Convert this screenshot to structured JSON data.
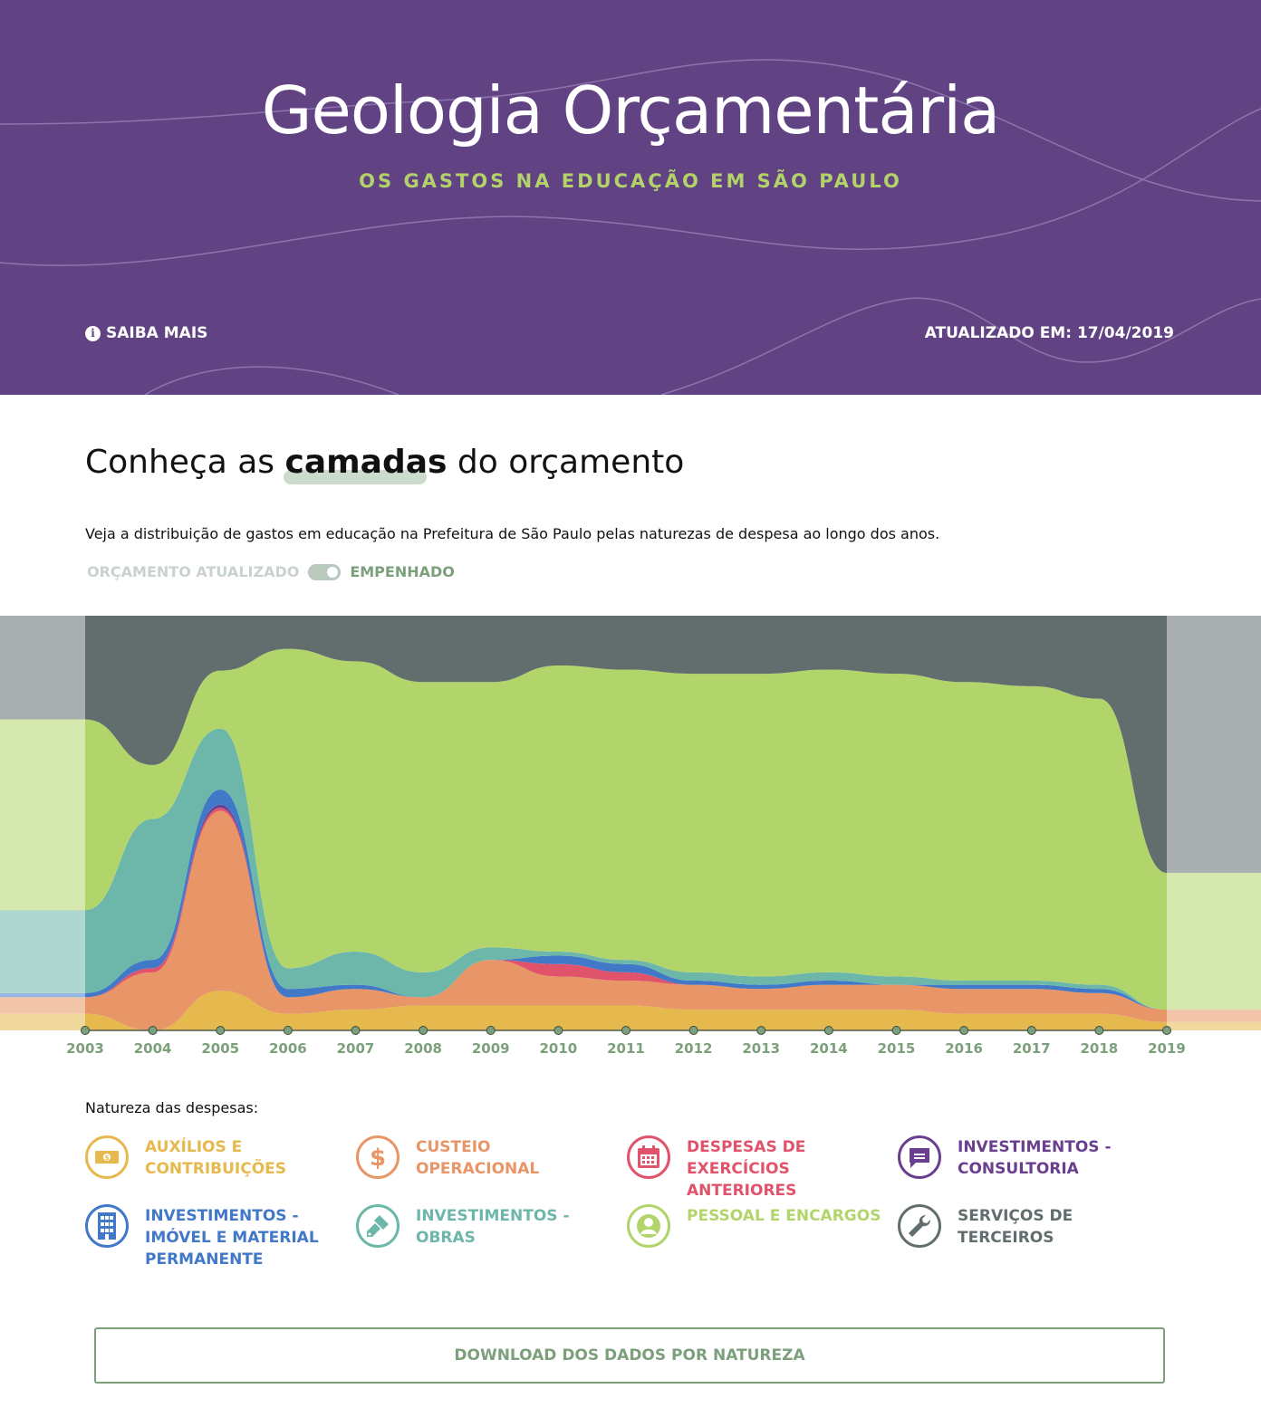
{
  "header": {
    "title": "Geologia Orçamentária",
    "subtitle": "OS GASTOS NA EDUCAÇÃO EM SÃO PAULO",
    "more_label": "SAIBA MAIS",
    "updated_label": "ATUALIZADO EM: 17/04/2019",
    "bg_color": "#614384",
    "subtitle_color": "#b3d36a"
  },
  "intro": {
    "title_before": "Conheça as",
    "title_highlight": "camadas",
    "title_after": "do orçamento",
    "description": "Veja a distribuição de gastos em educação na Prefeitura de São Paulo pelas naturezas de despesa ao longo dos anos.",
    "toggle_off_label": "ORÇAMENTO ATUALIZADO",
    "toggle_on_label": "EMPENHADO",
    "toggle_state": "EMPENHADO"
  },
  "chart_data": {
    "type": "area",
    "stacked": true,
    "normalized": true,
    "x": [
      2003,
      2004,
      2005,
      2006,
      2007,
      2008,
      2009,
      2010,
      2011,
      2012,
      2013,
      2014,
      2015,
      2016,
      2017,
      2018,
      2019
    ],
    "series": [
      {
        "name": "AUXÍLIOS E CONTRIBUIÇÕES",
        "color": "#e6b94e",
        "values": [
          4,
          0,
          13,
          4,
          5,
          6,
          6,
          6,
          6,
          5,
          5,
          5,
          5,
          4,
          4,
          4,
          2
        ]
      },
      {
        "name": "CUSTEIO OPERACIONAL",
        "color": "#e89567",
        "values": [
          4,
          14,
          59,
          4,
          5,
          2,
          11,
          7,
          6,
          6,
          5,
          6,
          6,
          6,
          6,
          5,
          3
        ]
      },
      {
        "name": "DESPESAS DE EXERCÍCIOS ANTERIORES",
        "color": "#e0536a",
        "values": [
          0,
          1,
          1,
          0,
          0,
          0,
          0,
          3,
          2,
          0,
          0,
          0,
          0,
          0,
          0,
          0,
          0
        ]
      },
      {
        "name": "INVESTIMENTOS - CONSULTORIA",
        "color": "#6a3f8f",
        "values": [
          0,
          0,
          1,
          0,
          0,
          0,
          0,
          0,
          0,
          0,
          0,
          0,
          0,
          0,
          0,
          0,
          0
        ]
      },
      {
        "name": "INVESTIMENTOS - IMÓVEL E MATERIAL PERMANENTE",
        "color": "#4178c8",
        "values": [
          1,
          2,
          5,
          2,
          1,
          0,
          0,
          2,
          2,
          1,
          1,
          1,
          0,
          1,
          1,
          1,
          0
        ]
      },
      {
        "name": "INVESTIMENTOS - OBRAS",
        "color": "#6db7aa",
        "values": [
          20,
          34,
          20,
          5,
          8,
          6,
          3,
          1,
          1,
          2,
          2,
          2,
          2,
          1,
          1,
          1,
          0
        ]
      },
      {
        "name": "PESSOAL E ENCARGOS",
        "color": "#b2d56b",
        "values": [
          46,
          13,
          19,
          77,
          70,
          70,
          64,
          69,
          70,
          72,
          73,
          73,
          73,
          72,
          71,
          69,
          33
        ]
      },
      {
        "name": "SERVIÇOS DE TERCEIROS",
        "color": "#626d6e",
        "values": [
          25,
          36,
          18,
          8,
          11,
          16,
          16,
          12,
          13,
          14,
          14,
          13,
          14,
          16,
          17,
          20,
          62
        ]
      }
    ]
  },
  "legend": {
    "heading": "Natureza das despesas:",
    "items": [
      {
        "label": "AUXÍLIOS E CONTRIBUIÇÕES",
        "color": "#e6b94e",
        "icon": "cash-icon"
      },
      {
        "label": "CUSTEIO OPERACIONAL",
        "color": "#e89567",
        "icon": "dollar-icon"
      },
      {
        "label": "DESPESAS DE EXERCÍCIOS ANTERIORES",
        "color": "#e0536a",
        "icon": "calendar-icon"
      },
      {
        "label": "INVESTIMENTOS - CONSULTORIA",
        "color": "#6a3f8f",
        "icon": "chat-icon"
      },
      {
        "label": "INVESTIMENTOS - IMÓVEL E MATERIAL PERMANENTE",
        "color": "#4178c8",
        "icon": "building-icon"
      },
      {
        "label": "INVESTIMENTOS - OBRAS",
        "color": "#6db7aa",
        "icon": "paintbrush-icon"
      },
      {
        "label": "PESSOAL E ENCARGOS",
        "color": "#b2d56b",
        "icon": "person-icon"
      },
      {
        "label": "SERVIÇOS DE TERCEIROS",
        "color": "#626d6e",
        "icon": "wrench-icon"
      }
    ]
  },
  "download": {
    "label": "DOWNLOAD DOS DADOS POR NATUREZA"
  }
}
